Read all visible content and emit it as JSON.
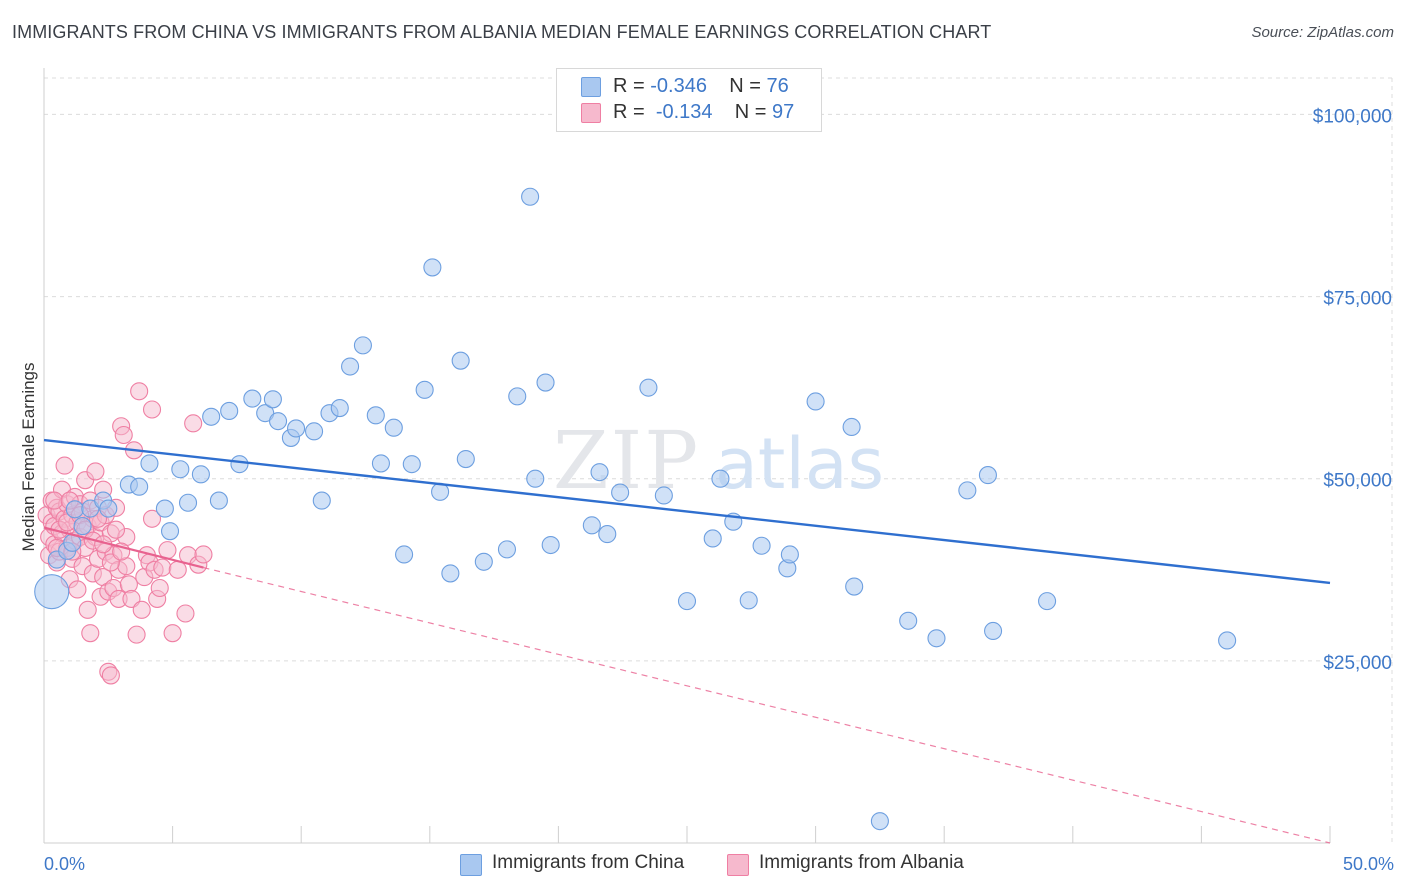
{
  "title": "IMMIGRANTS FROM CHINA VS IMMIGRANTS FROM ALBANIA MEDIAN FEMALE EARNINGS CORRELATION CHART",
  "source": "Source: ZipAtlas.com",
  "watermark": {
    "zip": "ZIP",
    "atlas": "atlas"
  },
  "colors": {
    "china_fill": "#a9c8f0",
    "china_stroke": "#6d9fe0",
    "china_line": "#2f6fcf",
    "albania_fill": "#f6b9cd",
    "albania_stroke": "#ef7fa3",
    "albania_line": "#e8628f",
    "axis_text": "#3e78c8",
    "grid": "#dcdcdc"
  },
  "legend": {
    "china": {
      "r_label": "R =",
      "r_value": "-0.346",
      "n_label": "N =",
      "n_value": "76"
    },
    "albania": {
      "r_label": "R =",
      "r_value": "-0.134",
      "n_label": "N =",
      "n_value": "97"
    }
  },
  "chart_data": {
    "type": "scatter",
    "title": "IMMIGRANTS FROM CHINA VS IMMIGRANTS FROM ALBANIA MEDIAN FEMALE EARNINGS CORRELATION CHART",
    "xlabel": "",
    "ylabel": "Median Female Earnings",
    "xlim": [
      0,
      50
    ],
    "ylim": [
      0,
      105000
    ],
    "x_tick_labels": [
      "0.0%",
      "50.0%"
    ],
    "y_ticks": [
      25000,
      50000,
      75000,
      100000
    ],
    "y_tick_labels": [
      "$25,000",
      "$50,000",
      "$75,000",
      "$100,000"
    ],
    "grid": true,
    "legend_position": "bottom",
    "series": [
      {
        "name": "Immigrants from China",
        "r": -0.346,
        "n": 76,
        "trend": {
          "x": [
            0,
            50
          ],
          "y": [
            55300,
            35700
          ]
        },
        "points": [
          [
            0.3,
            34500
          ],
          [
            0.5,
            38900
          ],
          [
            0.9,
            40100
          ],
          [
            1.1,
            41200
          ],
          [
            1.2,
            45800
          ],
          [
            1.8,
            45900
          ],
          [
            2.3,
            47000
          ],
          [
            2.5,
            45900
          ],
          [
            3.3,
            49200
          ],
          [
            3.7,
            48900
          ],
          [
            4.1,
            52100
          ],
          [
            4.7,
            45900
          ],
          [
            4.9,
            42800
          ],
          [
            5.3,
            51300
          ],
          [
            5.6,
            46700
          ],
          [
            6.1,
            50600
          ],
          [
            6.5,
            58500
          ],
          [
            6.8,
            47000
          ],
          [
            7.2,
            59300
          ],
          [
            7.6,
            52000
          ],
          [
            8.1,
            61000
          ],
          [
            8.6,
            59000
          ],
          [
            8.9,
            60900
          ],
          [
            9.1,
            57900
          ],
          [
            9.6,
            55600
          ],
          [
            9.8,
            56900
          ],
          [
            10.5,
            56500
          ],
          [
            10.8,
            47000
          ],
          [
            11.1,
            59000
          ],
          [
            11.5,
            59700
          ],
          [
            11.9,
            65400
          ],
          [
            12.4,
            68300
          ],
          [
            12.9,
            58700
          ],
          [
            13.1,
            52100
          ],
          [
            13.6,
            57000
          ],
          [
            14.0,
            39600
          ],
          [
            14.3,
            52000
          ],
          [
            14.8,
            62200
          ],
          [
            15.1,
            79000
          ],
          [
            15.4,
            48200
          ],
          [
            15.8,
            37000
          ],
          [
            16.2,
            66200
          ],
          [
            16.4,
            52700
          ],
          [
            17.1,
            38600
          ],
          [
            18.0,
            40300
          ],
          [
            18.4,
            61300
          ],
          [
            18.9,
            88700
          ],
          [
            19.1,
            50000
          ],
          [
            19.5,
            63200
          ],
          [
            19.7,
            40900
          ],
          [
            21.3,
            43600
          ],
          [
            21.6,
            50900
          ],
          [
            21.9,
            42400
          ],
          [
            22.4,
            48100
          ],
          [
            23.5,
            62500
          ],
          [
            24.1,
            47700
          ],
          [
            25.0,
            33200
          ],
          [
            26.0,
            41800
          ],
          [
            26.3,
            50000
          ],
          [
            26.8,
            44100
          ],
          [
            27.4,
            33300
          ],
          [
            27.9,
            40800
          ],
          [
            28.9,
            37700
          ],
          [
            29.0,
            39600
          ],
          [
            30.0,
            60600
          ],
          [
            31.4,
            57100
          ],
          [
            31.5,
            35200
          ],
          [
            32.5,
            3000
          ],
          [
            33.6,
            30500
          ],
          [
            34.7,
            28100
          ],
          [
            35.9,
            48400
          ],
          [
            36.7,
            50500
          ],
          [
            36.9,
            29100
          ],
          [
            39.0,
            33200
          ],
          [
            46.0,
            27800
          ],
          [
            1.5,
            43500
          ]
        ]
      },
      {
        "name": "Immigrants from Albania",
        "r": -0.134,
        "n": 97,
        "trend": {
          "x": [
            0,
            6.2
          ],
          "y": [
            43300,
            37800
          ]
        },
        "trend_dashed": {
          "x": [
            6.2,
            50
          ],
          "y": [
            37800,
            0
          ]
        },
        "points": [
          [
            0.1,
            45000
          ],
          [
            0.2,
            42000
          ],
          [
            0.2,
            39500
          ],
          [
            0.3,
            44000
          ],
          [
            0.3,
            47000
          ],
          [
            0.4,
            41000
          ],
          [
            0.4,
            43500
          ],
          [
            0.5,
            46000
          ],
          [
            0.5,
            38500
          ],
          [
            0.6,
            40000
          ],
          [
            0.6,
            45500
          ],
          [
            0.7,
            48500
          ],
          [
            0.7,
            42500
          ],
          [
            0.8,
            44500
          ],
          [
            0.8,
            51800
          ],
          [
            0.9,
            46500
          ],
          [
            0.9,
            40500
          ],
          [
            1.0,
            43000
          ],
          [
            1.0,
            36200
          ],
          [
            1.1,
            45000
          ],
          [
            1.1,
            39000
          ],
          [
            1.2,
            47500
          ],
          [
            1.2,
            41500
          ],
          [
            1.3,
            44000
          ],
          [
            1.3,
            34800
          ],
          [
            1.4,
            42000
          ],
          [
            1.4,
            46500
          ],
          [
            1.5,
            38000
          ],
          [
            1.5,
            45500
          ],
          [
            1.6,
            49800
          ],
          [
            1.6,
            40500
          ],
          [
            1.7,
            43500
          ],
          [
            1.7,
            32000
          ],
          [
            1.8,
            47000
          ],
          [
            1.8,
            28800
          ],
          [
            1.9,
            44500
          ],
          [
            1.9,
            37000
          ],
          [
            2.0,
            42000
          ],
          [
            2.0,
            51000
          ],
          [
            2.1,
            46000
          ],
          [
            2.1,
            39000
          ],
          [
            2.2,
            33800
          ],
          [
            2.2,
            44000
          ],
          [
            2.3,
            36500
          ],
          [
            2.3,
            48500
          ],
          [
            2.4,
            40000
          ],
          [
            2.4,
            45000
          ],
          [
            2.5,
            34500
          ],
          [
            2.5,
            23500
          ],
          [
            2.6,
            23000
          ],
          [
            2.6,
            42500
          ],
          [
            2.7,
            35000
          ],
          [
            2.7,
            39500
          ],
          [
            2.8,
            46000
          ],
          [
            2.9,
            33500
          ],
          [
            2.9,
            37500
          ],
          [
            3.0,
            57200
          ],
          [
            3.1,
            56000
          ],
          [
            3.2,
            42000
          ],
          [
            3.2,
            38000
          ],
          [
            3.3,
            35500
          ],
          [
            3.4,
            33500
          ],
          [
            3.5,
            53900
          ],
          [
            3.6,
            28600
          ],
          [
            3.7,
            62000
          ],
          [
            3.8,
            32000
          ],
          [
            3.9,
            36500
          ],
          [
            4.0,
            39500
          ],
          [
            4.1,
            38500
          ],
          [
            4.2,
            59500
          ],
          [
            4.2,
            44500
          ],
          [
            4.3,
            37500
          ],
          [
            4.4,
            33500
          ],
          [
            4.5,
            35000
          ],
          [
            4.6,
            37800
          ],
          [
            4.8,
            40200
          ],
          [
            5.0,
            28800
          ],
          [
            5.2,
            37500
          ],
          [
            5.5,
            31500
          ],
          [
            5.6,
            39500
          ],
          [
            6.0,
            38200
          ],
          [
            6.2,
            39600
          ],
          [
            5.8,
            57600
          ],
          [
            0.4,
            47000
          ],
          [
            0.5,
            40500
          ],
          [
            0.6,
            43000
          ],
          [
            0.9,
            44000
          ],
          [
            1.0,
            47000
          ],
          [
            1.1,
            40000
          ],
          [
            1.4,
            45000
          ],
          [
            1.6,
            43000
          ],
          [
            1.9,
            41500
          ],
          [
            2.1,
            44500
          ],
          [
            2.3,
            41000
          ],
          [
            2.6,
            38500
          ],
          [
            2.8,
            43000
          ],
          [
            3.0,
            40000
          ]
        ]
      }
    ]
  },
  "bottom_legend": {
    "china": "Immigrants from China",
    "albania": "Immigrants from Albania"
  }
}
